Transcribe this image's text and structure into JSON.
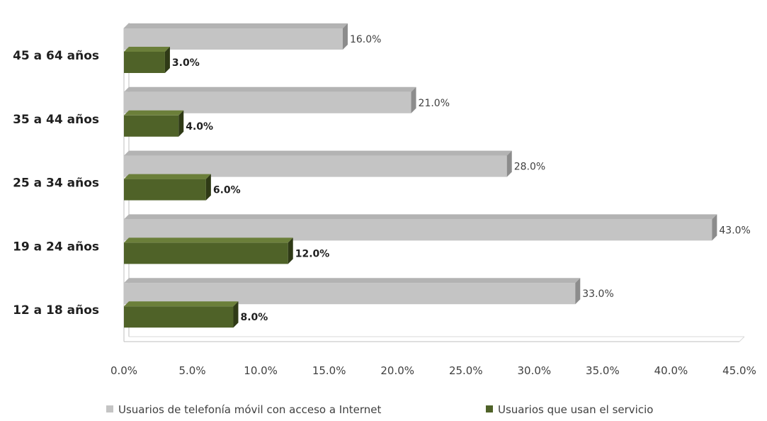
{
  "chart_data": {
    "type": "bar",
    "orientation": "horizontal",
    "three_d": true,
    "categories": [
      "45 a 64 años",
      "35 a 44 años",
      "25 a 34 años",
      "19 a 24 años",
      "12 a 18 años"
    ],
    "series": [
      {
        "name": "Usuarios de telefonía móvil con acceso a Internet",
        "values": [
          16.0,
          21.0,
          28.0,
          43.0,
          33.0
        ],
        "value_labels": [
          "16.0%",
          "21.0%",
          "28.0%",
          "43.0%",
          "33.0%"
        ],
        "color": "#c4c4c4"
      },
      {
        "name": "Usuarios que usan el servicio",
        "values": [
          3.0,
          4.0,
          6.0,
          12.0,
          8.0
        ],
        "value_labels": [
          "3.0%",
          "4.0%",
          "6.0%",
          "12.0%",
          "8.0%"
        ],
        "color": "#4f6228"
      }
    ],
    "x_ticks": [
      "0.0%",
      "5.0%",
      "10.0%",
      "15.0%",
      "20.0%",
      "25.0%",
      "30.0%",
      "35.0%",
      "40.0%",
      "45.0%"
    ],
    "xlim": [
      0,
      45
    ],
    "title": "",
    "xlabel": "",
    "ylabel": "",
    "grid": false,
    "legend_position": "bottom"
  }
}
